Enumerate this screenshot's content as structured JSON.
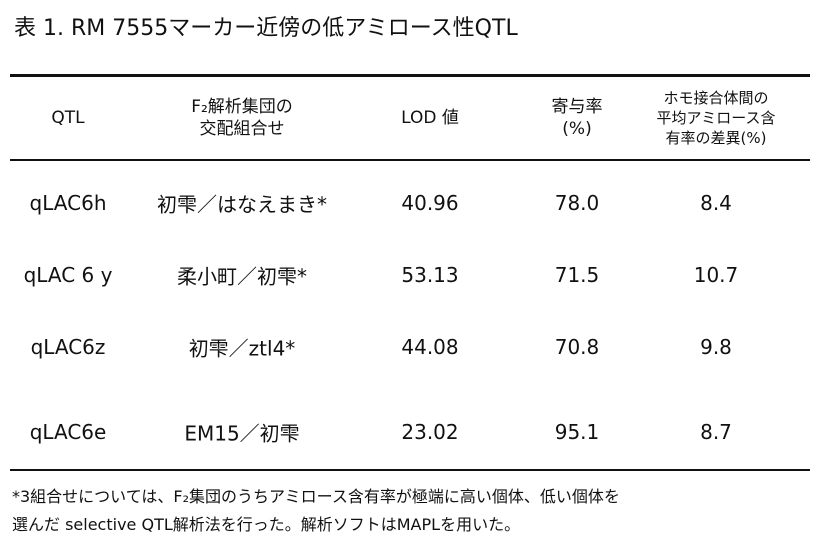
{
  "title": "表 1. RM 7555マーカー近傍の低アミロース性QTL",
  "table": {
    "header": [
      [
        "QTL"
      ],
      [
        "F₂解析集団の",
        "交配組合せ"
      ],
      [
        "LOD 値"
      ],
      [
        "寄与率",
        "(%)"
      ],
      [
        "ホモ接合体間の",
        "平均アミロース含",
        "有率の差異(%)"
      ]
    ],
    "rows": [
      [
        "qLAC6h",
        "初雫／はなえまき*",
        "40.96",
        "78.0",
        "8.4"
      ],
      [
        "qLAC 6 y",
        "柔小町／初雫*",
        "53.13",
        "71.5",
        "10.7"
      ],
      [
        "qLAC6z",
        "初雫／ztl4*",
        "44.08",
        "70.8",
        "9.8"
      ],
      [
        "qLAC6e",
        "EM15／初雫",
        "23.02",
        "95.1",
        "8.7"
      ]
    ]
  },
  "footnote": [
    "*3組合せについては、F₂集団のうちアミロース含有率が極端に高い個体、低い個体を",
    "選んだ selective QTL解析法を行った。解析ソフトはMAPLを用いた。"
  ]
}
